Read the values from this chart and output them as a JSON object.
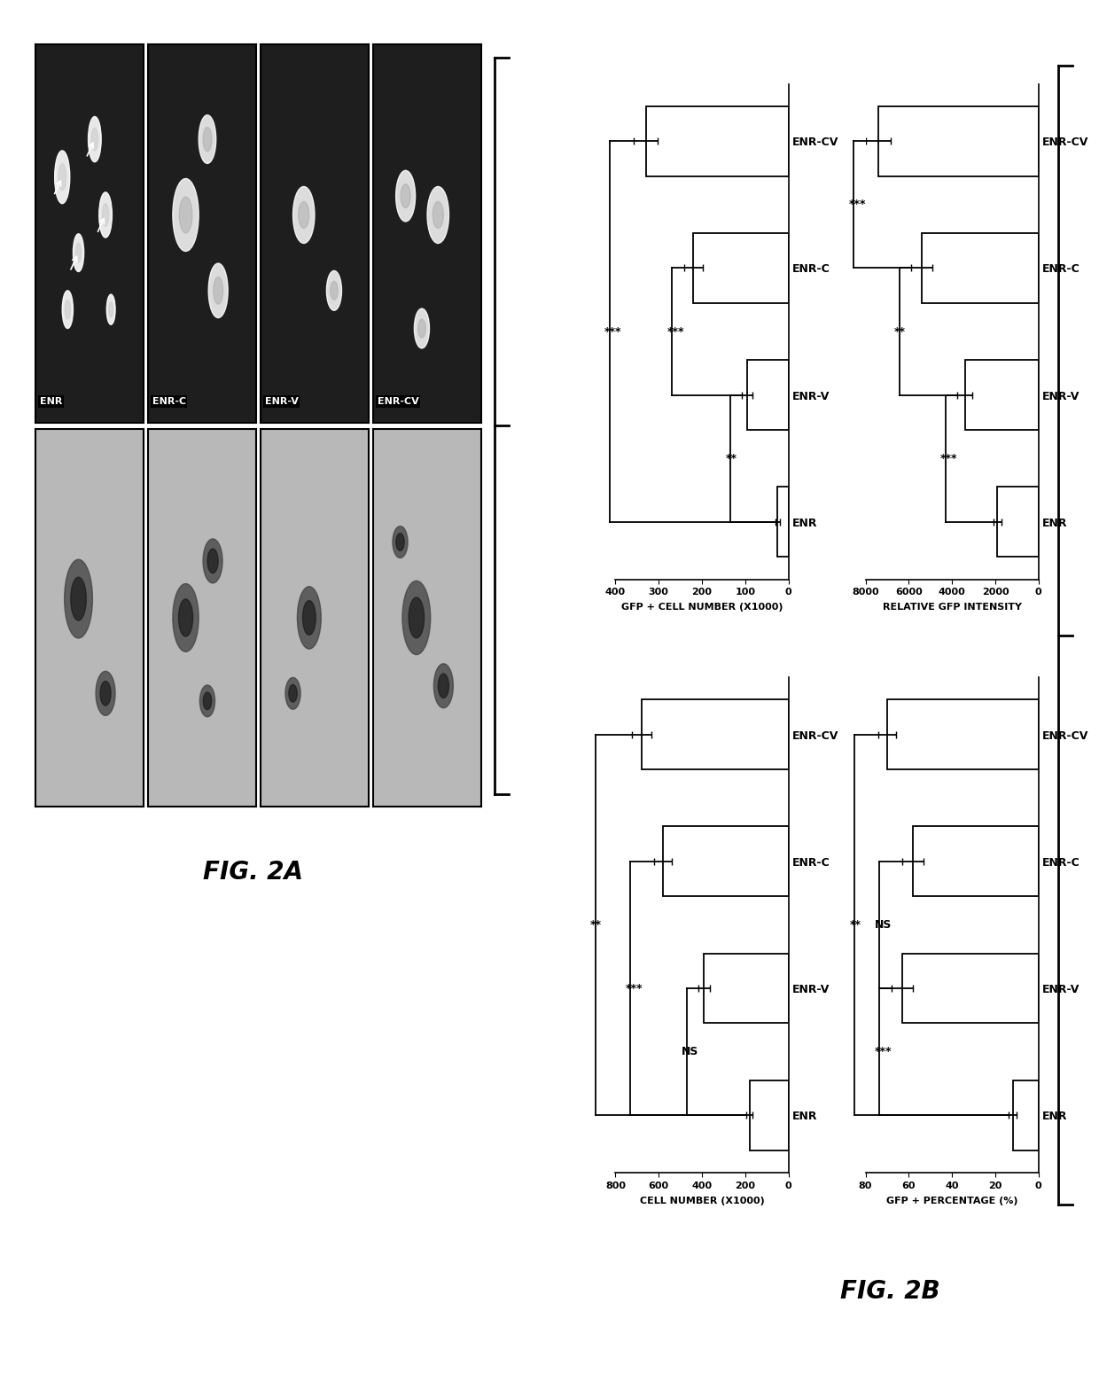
{
  "fig2a_label": "FIG. 2A",
  "fig2b_label": "FIG. 2B",
  "categories": [
    "ENR",
    "ENR-V",
    "ENR-C",
    "ENR-CV"
  ],
  "cell_number": [
    180,
    390,
    580,
    680
  ],
  "cell_number_err": [
    15,
    25,
    40,
    45
  ],
  "cell_number_xlabel": "CELL NUMBER (X1000)",
  "cell_number_xlim": [
    0,
    800
  ],
  "cell_number_xticks": [
    0,
    200,
    400,
    600,
    800
  ],
  "cell_number_sigs": [
    {
      "i1": 0,
      "i2": 1,
      "label": "NS",
      "level": 1
    },
    {
      "i1": 0,
      "i2": 2,
      "label": "***",
      "level": 2
    },
    {
      "i1": 0,
      "i2": 3,
      "label": "**",
      "level": 3
    }
  ],
  "gfp_pct": [
    12,
    63,
    58,
    70
  ],
  "gfp_pct_err": [
    2,
    5,
    5,
    4
  ],
  "gfp_pct_xlabel": "GFP + PERCENTAGE (%)",
  "gfp_pct_xlim": [
    0,
    80
  ],
  "gfp_pct_xticks": [
    0,
    20,
    40,
    60,
    80
  ],
  "gfp_pct_sigs": [
    {
      "i1": 0,
      "i2": 1,
      "label": "***",
      "level": 1
    },
    {
      "i1": 1,
      "i2": 2,
      "label": "NS",
      "level": 1
    },
    {
      "i1": 0,
      "i2": 3,
      "label": "**",
      "level": 2
    }
  ],
  "gfp_cell_number": [
    25,
    95,
    220,
    330
  ],
  "gfp_cell_number_err": [
    5,
    12,
    22,
    28
  ],
  "gfp_cell_number_xlabel": "GFP + CELL NUMBER (X1000)",
  "gfp_cell_number_xlim": [
    0,
    400
  ],
  "gfp_cell_number_xticks": [
    0,
    100,
    200,
    300,
    400
  ],
  "gfp_cell_number_sigs": [
    {
      "i1": 0,
      "i2": 1,
      "label": "**",
      "level": 1
    },
    {
      "i1": 1,
      "i2": 2,
      "label": "***",
      "level": 1
    },
    {
      "i1": 0,
      "i2": 3,
      "label": "***",
      "level": 2
    }
  ],
  "rel_gfp": [
    1900,
    3400,
    5400,
    7400
  ],
  "rel_gfp_err": [
    180,
    350,
    480,
    580
  ],
  "rel_gfp_xlabel": "RELATIVE GFP INTENSITY",
  "rel_gfp_xlim": [
    0,
    8000
  ],
  "rel_gfp_xticks": [
    0,
    2000,
    4000,
    6000,
    8000
  ],
  "rel_gfp_sigs": [
    {
      "i1": 0,
      "i2": 1,
      "label": "***",
      "level": 1
    },
    {
      "i1": 1,
      "i2": 2,
      "label": "**",
      "level": 1
    },
    {
      "i1": 2,
      "i2": 3,
      "label": "***",
      "level": 1
    }
  ],
  "bar_color": "#ffffff",
  "bar_edgecolor": "#000000",
  "background_color": "#ffffff",
  "img_labels_top": [
    "ENR",
    "ENR-C",
    "ENR-V",
    "ENR-CV"
  ],
  "dark_bg": "#1e1e1e",
  "light_bg": "#b8b8b8"
}
